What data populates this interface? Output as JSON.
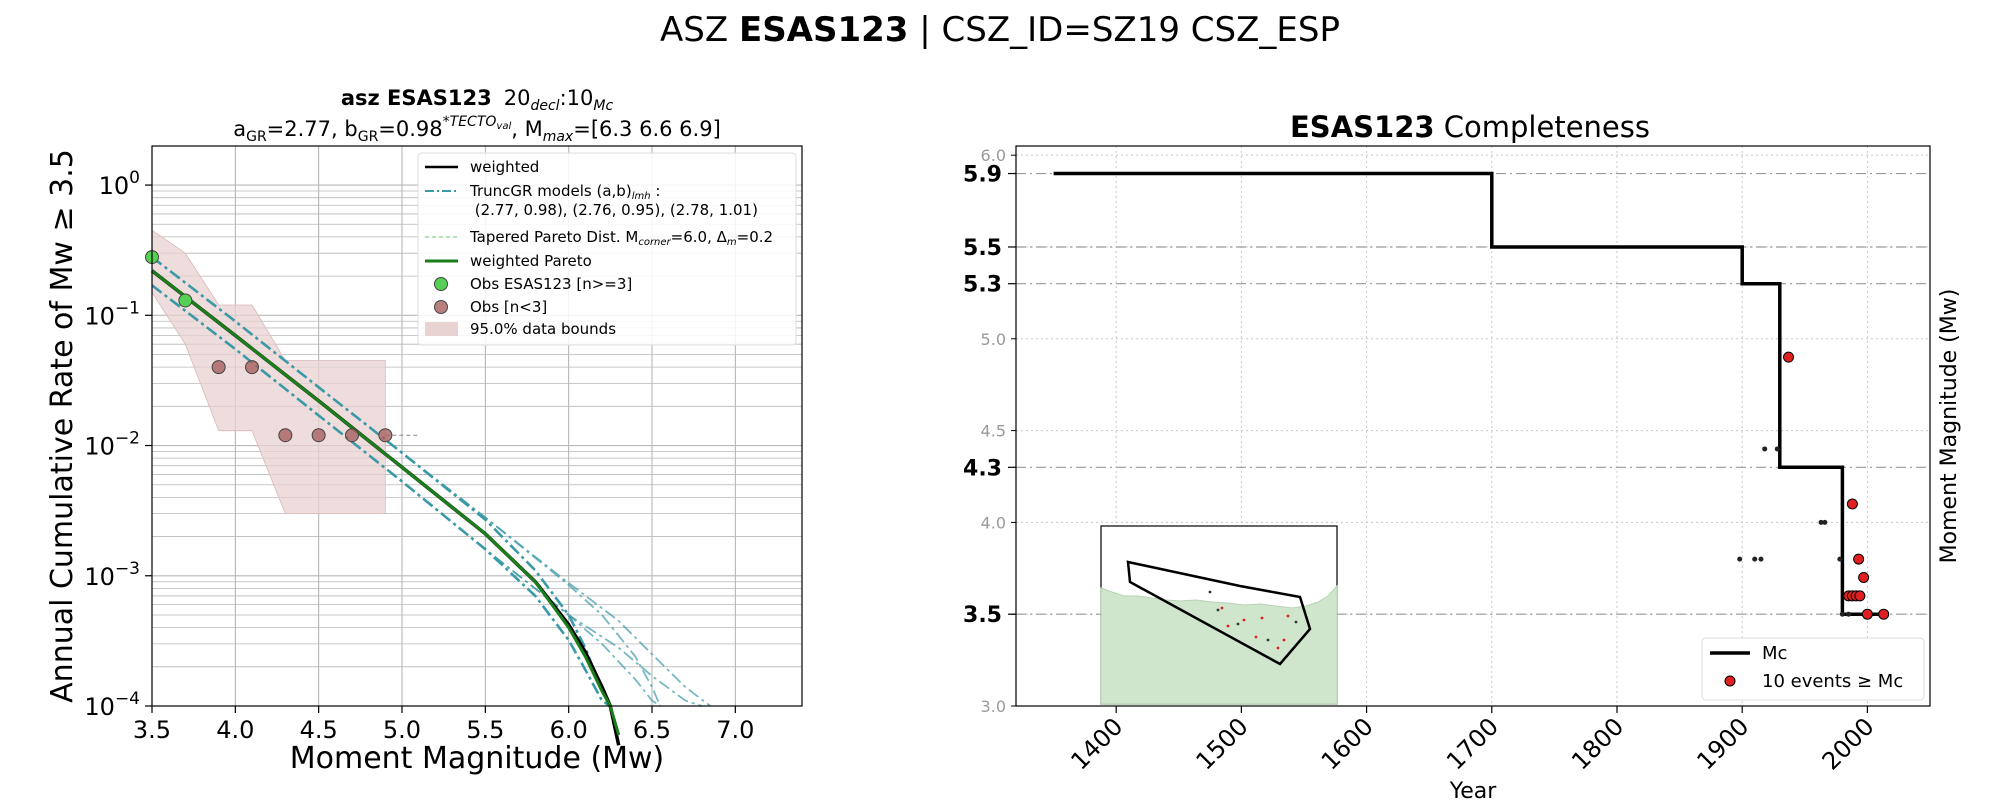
{
  "header": {
    "title_prefix": "ASZ",
    "title_bold": "ESAS123",
    "title_suffix": " | CSZ_ID=SZ19 CSZ_ESP"
  },
  "chart_data": [
    {
      "type": "line",
      "title_line1_bold": "asz ESAS123",
      "title_line1_rest": "20",
      "title_line1_sub1": "decl",
      "title_line1_mid": ":10",
      "title_line1_sub2": "Mc",
      "title_line2": "a_GR=2.77,  b_GR=0.98*TECTO_val, M_max=[6.3 6.6 6.9]",
      "title_line2_parts": {
        "a": "a",
        "a_sub": "GR",
        "a_val": "=2.77,  b",
        "b_sub": "GR",
        "b_val": "=0.98",
        "b_sup": "*TECTO",
        "b_sup_sub": "val",
        "mmax": ", M",
        "mmax_sub": "max",
        "mmax_val": "=[6.3 6.6 6.9]"
      },
      "xlabel": "Moment Magnitude (Mw)",
      "ylabel": "Annual Cumulative Rate of Mw  ≥  3.5",
      "xlim": [
        3.5,
        7.4
      ],
      "ylim_log10": [
        -4,
        0.3
      ],
      "y_scale": "log",
      "grid": true,
      "legend_placement": "upper-right",
      "x_ticks": [
        3.5,
        4.0,
        4.5,
        5.0,
        5.5,
        6.0,
        6.5,
        7.0
      ],
      "x_tick_labels": [
        "3.5",
        "4.0",
        "4.5",
        "5.0",
        "5.5",
        "6.0",
        "6.5",
        "7.0"
      ],
      "y_ticks": [
        {
          "exp": -4,
          "base": "10",
          "sup": "−4"
        },
        {
          "exp": -3,
          "base": "10",
          "sup": "−3"
        },
        {
          "exp": -2,
          "base": "10",
          "sup": "−2"
        },
        {
          "exp": -1,
          "base": "10",
          "sup": "−1"
        },
        {
          "exp": 0,
          "base": "10",
          "sup": "0"
        }
      ],
      "legend": [
        {
          "key": "weighted",
          "label": "weighted",
          "style": "solid-black"
        },
        {
          "key": "truncgr",
          "label": "TruncGR models (a,b)",
          "label_sub": "lmh",
          "label_tail": " :",
          "label_line2": " (2.77, 0.98), (2.76, 0.95), (2.78, 1.01)",
          "style": "dashdot-teal"
        },
        {
          "key": "tapered",
          "label": "Tapered Pareto Dist. M",
          "label_sub": "corner",
          "label_tail": "=6.0, Δ",
          "label_sub2": "m",
          "label_tail2": "=0.2",
          "style": "dashed-lightgreen"
        },
        {
          "key": "wpareto",
          "label": "weighted Pareto",
          "style": "solid-green"
        },
        {
          "key": "obs_n3",
          "label": "Obs ESAS123 [n>=3]",
          "style": "marker-green"
        },
        {
          "key": "obs_lt3",
          "label": "Obs [n<3]",
          "style": "marker-brown"
        },
        {
          "key": "bounds",
          "label": "95.0% data bounds",
          "style": "patch-pink"
        }
      ],
      "series": {
        "obs_n3": {
          "x": [
            3.5,
            3.7
          ],
          "y": [
            0.28,
            0.13
          ]
        },
        "obs_lt3": {
          "x": [
            3.9,
            4.1,
            4.3,
            4.5,
            4.7,
            4.9
          ],
          "y": [
            0.04,
            0.04,
            0.012,
            0.012,
            0.012,
            0.012
          ]
        },
        "bounds": {
          "x": [
            3.5,
            3.7,
            3.9,
            4.1,
            4.3,
            4.5,
            4.7,
            4.9
          ],
          "upper": [
            0.45,
            0.3,
            0.12,
            0.12,
            0.045,
            0.045,
            0.045,
            0.045
          ],
          "lower": [
            0.15,
            0.06,
            0.013,
            0.013,
            0.003,
            0.003,
            0.003,
            0.003
          ]
        },
        "weighted": {
          "x": [
            3.5,
            4.0,
            4.5,
            5.0,
            5.5,
            5.8,
            6.0,
            6.1,
            6.2,
            6.25,
            6.3
          ],
          "y": [
            0.22,
            0.07,
            0.022,
            0.0068,
            0.0021,
            0.0009,
            0.00042,
            0.00026,
            0.00014,
            0.0001,
            5e-05
          ]
        },
        "wpareto": {
          "x": [
            3.5,
            4.0,
            4.5,
            5.0,
            5.5,
            5.8,
            6.0,
            6.1,
            6.2,
            6.25,
            6.3
          ],
          "y": [
            0.22,
            0.07,
            0.022,
            0.0068,
            0.0021,
            0.0009,
            0.0004,
            0.00024,
            0.00013,
            0.0001,
            6e-05
          ]
        },
        "truncgr": [
          {
            "x": [
              3.5,
              4.0,
              4.5,
              5.0,
              5.5,
              5.8,
              6.0,
              6.1,
              6.2,
              6.25
            ],
            "y": [
              0.28,
              0.09,
              0.028,
              0.0088,
              0.0027,
              0.0011,
              0.0005,
              0.00028,
              0.00013,
              0.0001
            ]
          },
          {
            "x": [
              3.5,
              4.0,
              4.5,
              5.0,
              5.5,
              5.8,
              6.0,
              6.1,
              6.2,
              6.25
            ],
            "y": [
              0.17,
              0.055,
              0.017,
              0.0053,
              0.0016,
              0.0007,
              0.00032,
              0.00019,
              0.00011,
              0.0001
            ]
          },
          {
            "x": [
              3.5,
              4.0,
              4.5,
              5.0,
              5.5,
              6.0,
              6.2,
              6.4,
              6.5,
              6.55
            ],
            "y": [
              0.28,
              0.09,
              0.028,
              0.0088,
              0.0028,
              0.00085,
              0.0005,
              0.00024,
              0.00014,
              0.0001
            ]
          },
          {
            "x": [
              3.5,
              4.0,
              4.5,
              5.0,
              5.5,
              6.0,
              6.2,
              6.4,
              6.5,
              6.55
            ],
            "y": [
              0.17,
              0.055,
              0.017,
              0.0053,
              0.0016,
              0.0005,
              0.0003,
              0.00016,
              0.00011,
              0.0001
            ]
          },
          {
            "x": [
              3.5,
              4.0,
              4.5,
              5.0,
              5.5,
              6.0,
              6.3,
              6.5,
              6.7,
              6.85
            ],
            "y": [
              0.28,
              0.09,
              0.028,
              0.0088,
              0.0028,
              0.00088,
              0.00045,
              0.00025,
              0.00014,
              0.0001
            ]
          },
          {
            "x": [
              3.5,
              4.0,
              4.5,
              5.0,
              5.5,
              6.0,
              6.3,
              6.5,
              6.7,
              6.8
            ],
            "y": [
              0.17,
              0.055,
              0.017,
              0.0053,
              0.0016,
              0.0005,
              0.00028,
              0.00017,
              0.00011,
              0.0001
            ]
          }
        ],
        "tapered": {
          "x": [
            4.9,
            5.1
          ],
          "y": [
            0.012,
            0.012
          ]
        }
      }
    },
    {
      "type": "line",
      "title_bold": "ESAS123",
      "title_rest": " Completeness",
      "xlabel": "Year",
      "ylabel": "Moment Magnitude (Mw)",
      "xlim": [
        1320,
        2050
      ],
      "ylim": [
        3.0,
        6.05
      ],
      "grid": true,
      "legend_placement": "lower-right",
      "x_ticks": [
        1400,
        1500,
        1600,
        1700,
        1800,
        1900,
        2000
      ],
      "x_tick_labels": [
        "1400",
        "1500",
        "1600",
        "1700",
        "1800",
        "1900",
        "2000"
      ],
      "y_ticks_minor": [
        {
          "v": 3.0,
          "label": "3.0"
        },
        {
          "v": 3.5,
          "label": "3.5"
        },
        {
          "v": 4.0,
          "label": "4.0"
        },
        {
          "v": 4.5,
          "label": "4.5"
        },
        {
          "v": 5.0,
          "label": "5.0"
        },
        {
          "v": 5.5,
          "label": "5.5"
        },
        {
          "v": 6.0,
          "label": "6.0"
        }
      ],
      "y_ticks_major": [
        {
          "v": 3.5,
          "label": "3.5"
        },
        {
          "v": 4.3,
          "label": "4.3"
        },
        {
          "v": 5.3,
          "label": "5.3"
        },
        {
          "v": 5.5,
          "label": "5.5"
        },
        {
          "v": 5.9,
          "label": "5.9"
        }
      ],
      "mc_step": {
        "x": [
          1350,
          1700,
          1700,
          1900,
          1900,
          1930,
          1930,
          1980,
          1980,
          2015
        ],
        "y": [
          5.9,
          5.9,
          5.5,
          5.5,
          5.3,
          5.3,
          4.3,
          4.3,
          3.5,
          3.5
        ]
      },
      "legend": [
        {
          "key": "mc",
          "label": "Mc"
        },
        {
          "key": "events",
          "label": "10 events  ≥  Mc"
        }
      ],
      "events_above_mc": {
        "x": [
          1937,
          1988,
          1993,
          1997,
          1985,
          1988,
          1991,
          1994,
          2000,
          2013
        ],
        "y": [
          4.9,
          4.1,
          3.8,
          3.7,
          3.6,
          3.6,
          3.6,
          3.6,
          3.5,
          3.5
        ]
      },
      "events_below_mc": {
        "x": [
          1898,
          1910,
          1915,
          1918,
          1928,
          1963,
          1966,
          1978,
          1980,
          1985,
          2010
        ],
        "y": [
          3.8,
          3.8,
          3.8,
          4.4,
          4.4,
          4.0,
          4.0,
          3.8,
          3.5,
          3.5,
          3.5
        ]
      }
    }
  ],
  "colors": {
    "weighted": "#000000",
    "truncgr": "#3a9aa6",
    "tapered": "#98d8a0",
    "wpareto": "#1a7f1a",
    "obs_n3": "#55d055",
    "obs_lt3": "#a86060",
    "bounds": "#e9d2d2",
    "event_red": "#e02020",
    "inset_fill": "#cfe6cd"
  }
}
